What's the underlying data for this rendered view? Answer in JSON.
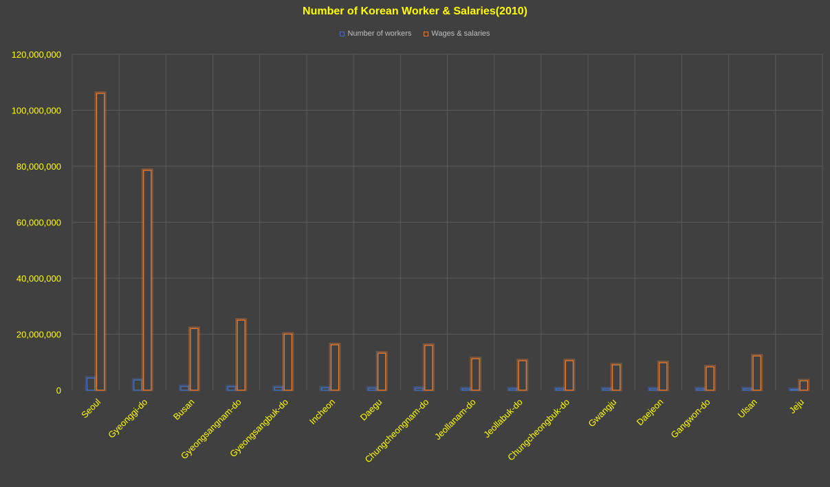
{
  "chart_data": {
    "type": "bar",
    "title": "Number of Korean Worker & Salaries(2010)",
    "categories": [
      "Seoul",
      "Gyeonggi-do",
      "Busan",
      "Gyeongsangnam-do",
      "Gyeongsangbuk-do",
      "Incheon",
      "Daegu",
      "Chungcheongnam-do",
      "Jeollanam-do",
      "Jeollabuk-do",
      "Chungcheongbuk-do",
      "Gwangju",
      "Daejeon",
      "Gangwon-do",
      "Ulsan",
      "Jeju"
    ],
    "series": [
      {
        "name": "Number of workers",
        "color": "#4472C4",
        "values": [
          4300000,
          3600000,
          1300000,
          1200000,
          1000000,
          800000,
          700000,
          700000,
          500000,
          500000,
          500000,
          500000,
          500000,
          500000,
          500000,
          250000
        ]
      },
      {
        "name": "Wages & salaries",
        "color": "#ED7D31",
        "values": [
          106000000,
          78500000,
          22000000,
          25000000,
          20000000,
          16200000,
          13200000,
          16000000,
          11200000,
          10500000,
          10500000,
          9000000,
          9800000,
          8300000,
          12200000,
          3300000
        ]
      }
    ],
    "yticks": [
      "0",
      "20,000,000",
      "40,000,000",
      "60,000,000",
      "80,000,000",
      "100,000,000",
      "120,000,000"
    ],
    "ylim": [
      0,
      120000000
    ],
    "grid": true,
    "legend_position": "top"
  }
}
